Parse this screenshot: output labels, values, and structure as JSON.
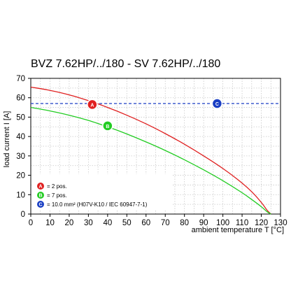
{
  "chart_data": {
    "type": "line",
    "title": "BVZ 7.62HP/../180 - SV 7.62HP/../180",
    "xlabel": "ambient temperature T [°C]",
    "ylabel": "load current I [A]",
    "xlim": [
      0,
      130
    ],
    "ylim": [
      0,
      70
    ],
    "xticks": [
      "0",
      "10",
      "20",
      "30",
      "40",
      "50",
      "60",
      "70",
      "80",
      "90",
      "100",
      "110",
      "120",
      "130"
    ],
    "yticks": [
      "0",
      "10",
      "20",
      "30",
      "40",
      "50",
      "60",
      "70"
    ],
    "grid": true,
    "legend_position": "bottom-left",
    "series": [
      {
        "badge": "A",
        "label": "= 2 pos.",
        "color": "#e02020",
        "style": "solid",
        "x": [
          0,
          10,
          20,
          30,
          40,
          50,
          60,
          70,
          80,
          90,
          100,
          110,
          115,
          120,
          123,
          125
        ],
        "y": [
          65.5,
          63.8,
          61.5,
          58.5,
          55,
          51,
          46.5,
          41.5,
          36,
          30,
          23.5,
          16,
          11.5,
          6,
          2,
          0
        ]
      },
      {
        "badge": "B",
        "label": "= 7 pos.",
        "color": "#22cc22",
        "style": "solid",
        "x": [
          0,
          10,
          20,
          30,
          40,
          50,
          60,
          70,
          80,
          90,
          100,
          110,
          115,
          120,
          123,
          125
        ],
        "y": [
          55,
          53.2,
          51,
          48.3,
          45,
          41.3,
          37.2,
          32.8,
          28,
          22.8,
          17.2,
          11,
          7.5,
          3.8,
          1.2,
          0
        ]
      },
      {
        "badge": "C",
        "label": "= 10.0 mm² (H07V-K10 / IEC 60947-7-1)",
        "color": "#1a3fc4",
        "style": "dashed",
        "x": [
          0,
          130
        ],
        "y": [
          57,
          57
        ]
      }
    ],
    "markers": [
      {
        "badge": "A",
        "x": 32,
        "y": 56.5,
        "color": "#e02020"
      },
      {
        "badge": "B",
        "x": 40,
        "y": 45.5,
        "color": "#22cc22"
      },
      {
        "badge": "C",
        "x": 97,
        "y": 57,
        "color": "#1a3fc4"
      }
    ]
  }
}
